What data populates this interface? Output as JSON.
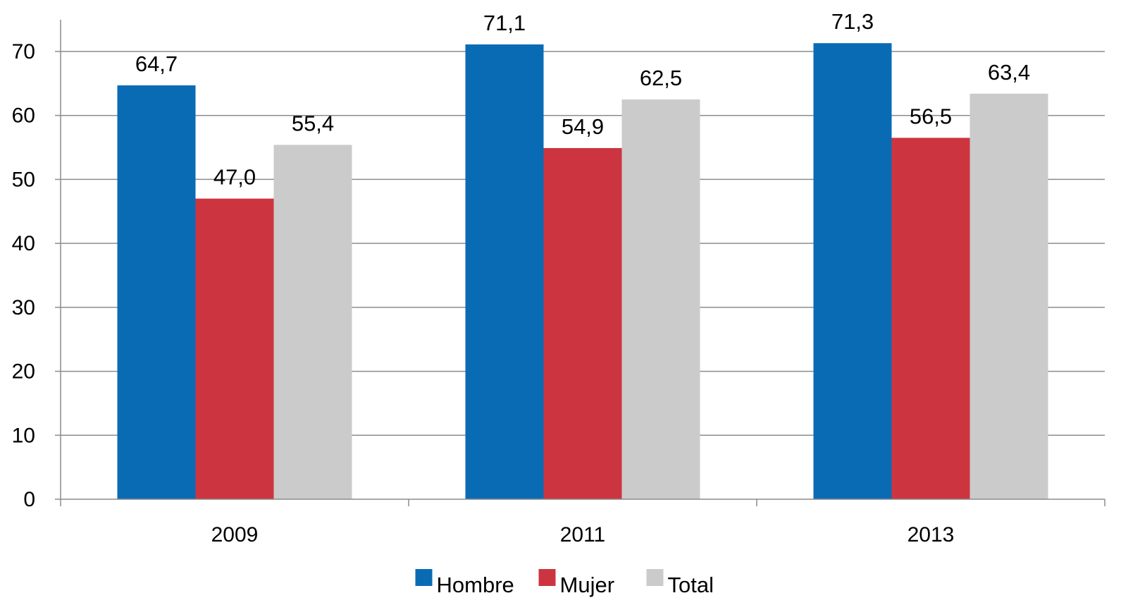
{
  "chart_data": {
    "type": "bar",
    "title": "",
    "xlabel": "",
    "ylabel": "",
    "categories": [
      "2009",
      "2011",
      "2013"
    ],
    "series": [
      {
        "name": "Hombre",
        "color": "#0a6bb5",
        "values": [
          64.7,
          71.1,
          71.3
        ],
        "labels": [
          "64,7",
          "71,1",
          "71,3"
        ]
      },
      {
        "name": "Mujer",
        "color": "#cc3540",
        "values": [
          47.0,
          54.9,
          56.5
        ],
        "labels": [
          "47,0",
          "54,9",
          "56,5"
        ]
      },
      {
        "name": "Total",
        "color": "#cbcbcb",
        "values": [
          55.4,
          62.5,
          63.4
        ],
        "labels": [
          "55,4",
          "62,5",
          "63,4"
        ]
      }
    ],
    "ylim": [
      0,
      70
    ],
    "yticks": [
      0,
      10,
      20,
      30,
      40,
      50,
      60,
      70
    ],
    "grid": true,
    "legend_position": "bottom"
  }
}
